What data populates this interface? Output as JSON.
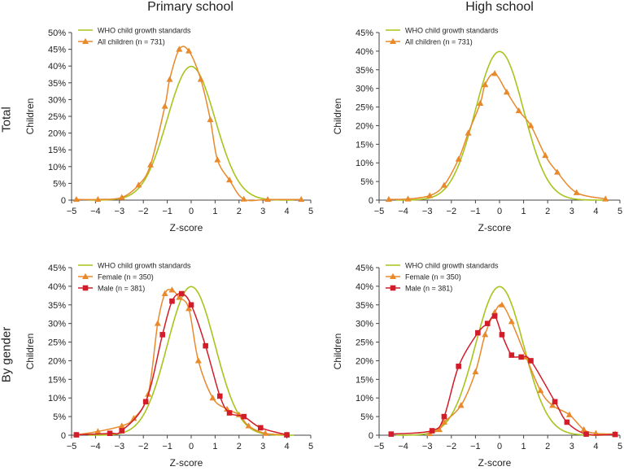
{
  "column_titles": [
    "Primary school",
    "High school"
  ],
  "row_titles": [
    "Total",
    "By gender"
  ],
  "colors": {
    "who": "#a8c41c",
    "all": "#e8892b",
    "female": "#e8892b",
    "male": "#d21c2a",
    "axis": "#444444"
  },
  "chart_data": [
    {
      "type": "line",
      "panel": "Primary school - Total",
      "xlabel": "Z-score",
      "ylabel": "Children",
      "xlim": [
        -5,
        5
      ],
      "ylim": [
        0,
        50
      ],
      "xticks": [
        "−5",
        "−4",
        "−3",
        "−2",
        "−1",
        "0",
        "1",
        "2",
        "3",
        "4",
        "5"
      ],
      "yticks": [
        "0",
        "5%",
        "10%",
        "15%",
        "20%",
        "25%",
        "30%",
        "35%",
        "40%",
        "45%",
        "50%"
      ],
      "series": [
        {
          "name": "WHO child growth standards",
          "legend": "WHO child growth standards",
          "kind": "normal",
          "peak": 39.9,
          "marker": "none",
          "color_key": "who"
        },
        {
          "name": "All children",
          "legend": "All children (n = 731)",
          "marker": "triangle",
          "color_key": "all",
          "x": [
            -4.8,
            -3.9,
            -2.9,
            -2.2,
            -1.7,
            -1.1,
            -0.9,
            -0.5,
            -0.1,
            0.4,
            0.8,
            1.1,
            1.6,
            2.2,
            3.2,
            4.6
          ],
          "y": [
            0.2,
            0.2,
            0.8,
            4.5,
            10.5,
            28,
            36,
            45,
            44.5,
            36,
            24,
            12,
            6,
            0.3,
            0.2,
            0.2
          ]
        }
      ]
    },
    {
      "type": "line",
      "panel": "High school - Total",
      "xlabel": "Z-score",
      "ylabel": "Children",
      "xlim": [
        -5,
        5
      ],
      "ylim": [
        0,
        45
      ],
      "xticks": [
        "−5",
        "−4",
        "−3",
        "−2",
        "−1",
        "0",
        "1",
        "2",
        "3",
        "4",
        "5"
      ],
      "yticks": [
        "0",
        "5%",
        "10%",
        "15%",
        "20%",
        "25%",
        "30%",
        "35%",
        "40%",
        "45%"
      ],
      "series": [
        {
          "name": "WHO child growth standards",
          "legend": "WHO child growth standards",
          "kind": "normal",
          "peak": 39.9,
          "marker": "none",
          "color_key": "who"
        },
        {
          "name": "All children",
          "legend": "All children (n = 731)",
          "marker": "triangle",
          "color_key": "all",
          "x": [
            -4.6,
            -3.8,
            -2.9,
            -2.3,
            -1.7,
            -1.3,
            -0.8,
            -0.6,
            -0.2,
            0.3,
            0.8,
            1.3,
            1.9,
            2.4,
            3.2,
            4.4
          ],
          "y": [
            0.2,
            0.3,
            1.2,
            4,
            11,
            18,
            26,
            31,
            34,
            29,
            24,
            20,
            12,
            7.5,
            2,
            0.3
          ]
        }
      ]
    },
    {
      "type": "line",
      "panel": "Primary school - By gender",
      "xlabel": "Z-score",
      "ylabel": "Children",
      "xlim": [
        -5,
        5
      ],
      "ylim": [
        0,
        45
      ],
      "xticks": [
        "−5",
        "−4",
        "−3",
        "−2",
        "−1",
        "0",
        "1",
        "2",
        "3",
        "4",
        "5"
      ],
      "yticks": [
        "0",
        "5%",
        "10%",
        "15%",
        "20%",
        "25%",
        "30%",
        "35%",
        "40%",
        "45%"
      ],
      "series": [
        {
          "name": "WHO child growth standards",
          "legend": "WHO child growth standards",
          "kind": "normal",
          "peak": 39.9,
          "marker": "none",
          "color_key": "who"
        },
        {
          "name": "Female",
          "legend": "Female (n = 350)",
          "marker": "triangle",
          "color_key": "female",
          "x": [
            -4.8,
            -3.9,
            -2.9,
            -2.4,
            -1.8,
            -1.4,
            -1.1,
            -0.8,
            -0.5,
            -0.1,
            0.3,
            0.9,
            1.5,
            2.0,
            2.4,
            3.1,
            4.0
          ],
          "y": [
            0.1,
            1,
            2.5,
            4.5,
            11,
            30,
            38,
            39,
            37,
            34,
            20,
            10,
            7,
            5.5,
            2.5,
            0.5,
            0.1
          ]
        },
        {
          "name": "Male",
          "legend": "Male (n = 381)",
          "marker": "square",
          "color_key": "male",
          "x": [
            -4.8,
            -3.4,
            -2.9,
            -1.9,
            -1.2,
            -0.8,
            -0.4,
            0.0,
            0.6,
            1.2,
            1.6,
            2.2,
            2.9,
            4.0
          ],
          "y": [
            0.1,
            0.5,
            1.2,
            9,
            27,
            36,
            38,
            35,
            24,
            10.5,
            6,
            5,
            2,
            0.1
          ]
        }
      ]
    },
    {
      "type": "line",
      "panel": "High school - By gender",
      "xlabel": "Z-score",
      "ylabel": "Children",
      "xlim": [
        -5,
        5
      ],
      "ylim": [
        0,
        45
      ],
      "xticks": [
        "−5",
        "−4",
        "−3",
        "−2",
        "−1",
        "0",
        "1",
        "2",
        "3",
        "4",
        "5"
      ],
      "yticks": [
        "0",
        "5%",
        "10%",
        "15%",
        "20%",
        "25%",
        "30%",
        "35%",
        "40%",
        "45%"
      ],
      "series": [
        {
          "name": "WHO child growth standards",
          "legend": "WHO child growth standards",
          "kind": "normal",
          "peak": 39.9,
          "marker": "none",
          "color_key": "who"
        },
        {
          "name": "Female",
          "legend": "Female (n = 350)",
          "marker": "triangle",
          "color_key": "female",
          "x": [
            -2.9,
            -2.5,
            -2.3,
            -1.6,
            -1.0,
            -0.6,
            -0.2,
            0.1,
            0.5,
            1.1,
            1.7,
            2.2,
            2.9,
            3.5,
            4.0,
            4.8
          ],
          "y": [
            0.4,
            1.5,
            3.5,
            8,
            17,
            27,
            33,
            35,
            30.5,
            21,
            12,
            8,
            5.5,
            1.5,
            0.5,
            0.3
          ]
        },
        {
          "name": "Male",
          "legend": "Male (n = 381)",
          "marker": "square",
          "color_key": "male",
          "x": [
            -4.5,
            -2.8,
            -2.3,
            -1.7,
            -0.9,
            -0.5,
            -0.2,
            0.1,
            0.5,
            0.9,
            1.3,
            2.3,
            2.8,
            3.6,
            4.8
          ],
          "y": [
            0.3,
            1.2,
            5,
            18.5,
            27.5,
            30,
            32,
            27,
            21.5,
            21,
            20,
            9,
            3.5,
            0.3,
            0.2
          ]
        }
      ]
    }
  ]
}
